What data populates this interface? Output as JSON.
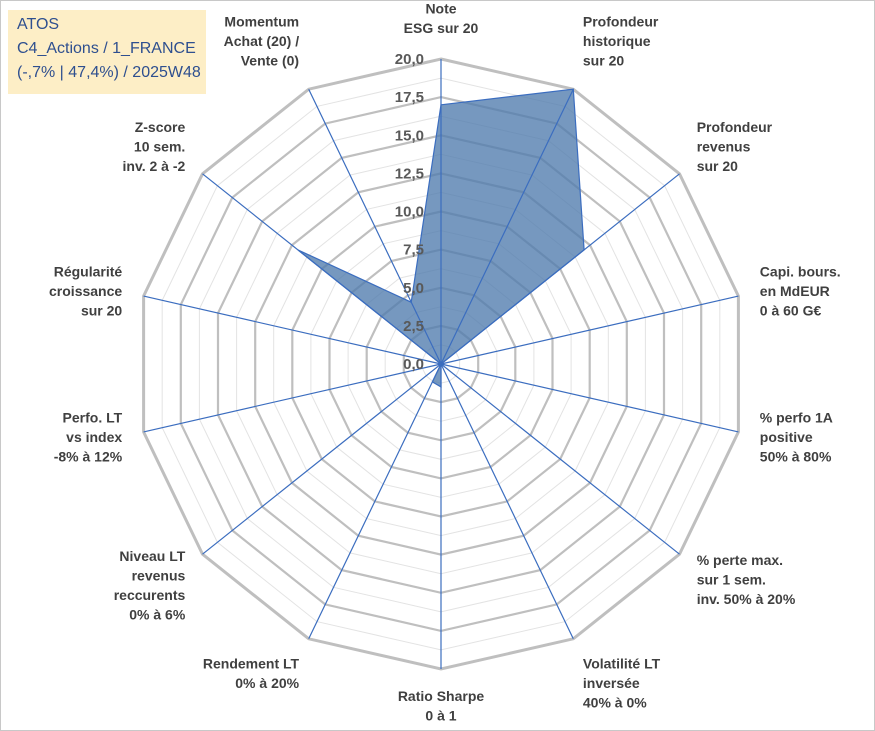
{
  "header": {
    "line1": "ATOS",
    "line2": "C4_Actions / 1_FRANCE",
    "line3": "(-,7% | 47,4%) / 2025W48"
  },
  "chart_data": {
    "type": "radar",
    "title": "",
    "rmin": 0,
    "rmax": 20,
    "tick_step": 2.5,
    "ticks": [
      "0,0",
      "2,5",
      "5,0",
      "7,5",
      "10,0",
      "12,5",
      "15,0",
      "17,5",
      "20,0"
    ],
    "axes": [
      [
        "Note",
        "ESG sur 20"
      ],
      [
        "Profondeur",
        "historique",
        "sur 20"
      ],
      [
        "Profondeur",
        "revenus",
        "sur 20"
      ],
      [
        "Capi. bours.",
        "en MdEUR",
        "0 à 60 G€"
      ],
      [
        "% perfo 1A",
        "positive",
        "50% à 80%"
      ],
      [
        "% perte max.",
        "sur 1 sem.",
        "inv. 50% à 20%"
      ],
      [
        "Volatilité LT",
        "inversée",
        "40% à 0%"
      ],
      [
        "Ratio Sharpe",
        "0 à 1"
      ],
      [
        "Rendement LT",
        "0% à 20%"
      ],
      [
        "Niveau LT",
        "revenus",
        "reccurents",
        "0% à 6%"
      ],
      [
        "Perfo. LT",
        "vs index",
        "-8% à 12%"
      ],
      [
        "Régularité",
        "croissance",
        "sur 20"
      ],
      [
        "Z-score",
        "10 sem.",
        "inv. 2 à -2"
      ],
      [
        "Momentum",
        "Achat (20) /",
        "Vente (0)"
      ]
    ],
    "series": [
      {
        "name": "ATOS",
        "values": [
          17,
          20,
          12,
          0,
          0,
          0,
          0,
          1.5,
          1.3,
          0,
          0,
          0,
          12,
          4.5
        ],
        "color": "#4f7bad"
      }
    ],
    "grid_color": "#bfbfbf",
    "spoke_color": "#3b6dbf"
  }
}
